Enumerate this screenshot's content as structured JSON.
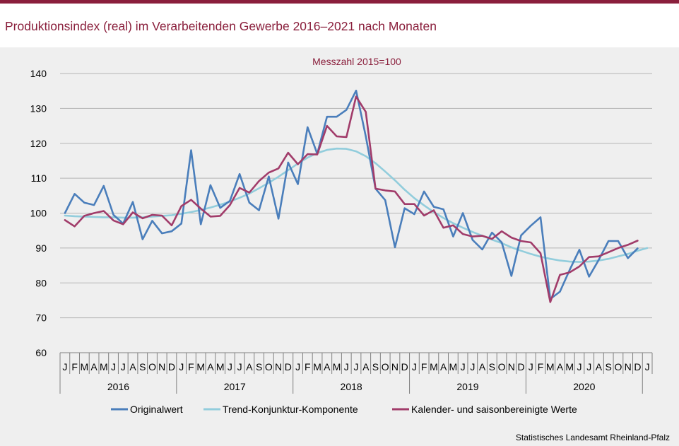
{
  "title": "Produktionsindex (real) im Verarbeitenden Gewerbe 2016–2021 nach Monaten",
  "source": "Statistisches Landesamt Rheinland-Pfalz",
  "colors": {
    "accent": "#8a1f3c",
    "background": "#efefef",
    "grid": "#b5b5b5"
  },
  "chart_data": {
    "type": "line",
    "subtitle": "Messzahl 2015=100",
    "ylim": [
      60,
      140
    ],
    "yticks": [
      60,
      70,
      80,
      90,
      100,
      110,
      120,
      130,
      140
    ],
    "grid": "horizontal",
    "legend_position": "bottom",
    "month_labels": [
      "J",
      "F",
      "M",
      "A",
      "M",
      "J",
      "J",
      "A",
      "S",
      "O",
      "N",
      "D",
      "J",
      "F",
      "M",
      "A",
      "M",
      "J",
      "J",
      "A",
      "S",
      "O",
      "N",
      "D",
      "J",
      "F",
      "M",
      "A",
      "M",
      "J",
      "J",
      "A",
      "S",
      "O",
      "N",
      "D",
      "J",
      "F",
      "M",
      "A",
      "M",
      "J",
      "J",
      "A",
      "S",
      "O",
      "N",
      "D",
      "J",
      "F",
      "M",
      "A",
      "M",
      "J",
      "J",
      "A",
      "S",
      "O",
      "N",
      "D",
      "J"
    ],
    "year_labels": [
      "2016",
      "2017",
      "2018",
      "2019",
      "2020"
    ],
    "series": [
      {
        "name": "Originalwert",
        "color": "#4a7ebb",
        "values": [
          100.0,
          105.5,
          103.0,
          102.3,
          107.8,
          99.5,
          97.0,
          103.2,
          92.5,
          97.8,
          94.2,
          94.8,
          97.0,
          118.0,
          96.8,
          108.0,
          101.5,
          103.5,
          111.2,
          103.0,
          100.8,
          110.5,
          98.4,
          114.5,
          108.3,
          124.6,
          117.0,
          127.6,
          127.6,
          129.6,
          135.1,
          122.0,
          107.0,
          103.7,
          90.2,
          101.4,
          99.7,
          106.2,
          101.8,
          101.1,
          93.3,
          100.0,
          92.3,
          89.6,
          94.4,
          91.6,
          82.0,
          93.6,
          96.4,
          98.8,
          75.4,
          77.5,
          83.7,
          89.5,
          81.8,
          86.6,
          92.0,
          92.0,
          87.1,
          89.9
        ]
      },
      {
        "name": "Trend-Konjunktur-Komponente",
        "color": "#92cddc",
        "values": [
          99.3,
          99.1,
          99.0,
          98.9,
          98.8,
          98.8,
          98.7,
          98.7,
          98.8,
          99.0,
          99.2,
          99.4,
          99.8,
          100.3,
          100.9,
          101.6,
          102.4,
          103.3,
          104.4,
          105.6,
          107.1,
          108.7,
          110.4,
          112.3,
          114.2,
          115.9,
          117.2,
          118.1,
          118.5,
          118.4,
          117.7,
          116.3,
          114.3,
          111.9,
          109.4,
          106.7,
          104.3,
          102.2,
          100.3,
          98.6,
          97.1,
          95.8,
          94.6,
          93.5,
          92.4,
          91.4,
          90.2,
          89.2,
          88.3,
          87.5,
          86.9,
          86.4,
          86.1,
          86.0,
          86.1,
          86.4,
          86.9,
          87.6,
          88.3,
          89.2,
          90.0
        ]
      },
      {
        "name": "Kalender- und saisonbereinigte Werte",
        "color": "#a13c6a",
        "values": [
          98.0,
          96.2,
          99.2,
          100.0,
          100.6,
          97.9,
          96.8,
          100.2,
          98.5,
          99.5,
          99.3,
          96.5,
          102.0,
          103.8,
          101.3,
          99.0,
          99.2,
          102.3,
          107.2,
          105.9,
          109.2,
          111.6,
          112.8,
          117.3,
          114.0,
          116.9,
          116.8,
          125.0,
          122.0,
          121.8,
          133.4,
          129.0,
          107.0,
          106.5,
          106.2,
          102.6,
          102.6,
          99.3,
          100.8,
          95.8,
          96.5,
          94.0,
          93.3,
          93.5,
          92.6,
          94.8,
          93.0,
          92.0,
          91.6,
          88.5,
          74.5,
          82.3,
          83.0,
          84.7,
          87.4,
          87.6,
          88.8,
          90.0,
          90.9,
          92.1
        ]
      }
    ]
  }
}
